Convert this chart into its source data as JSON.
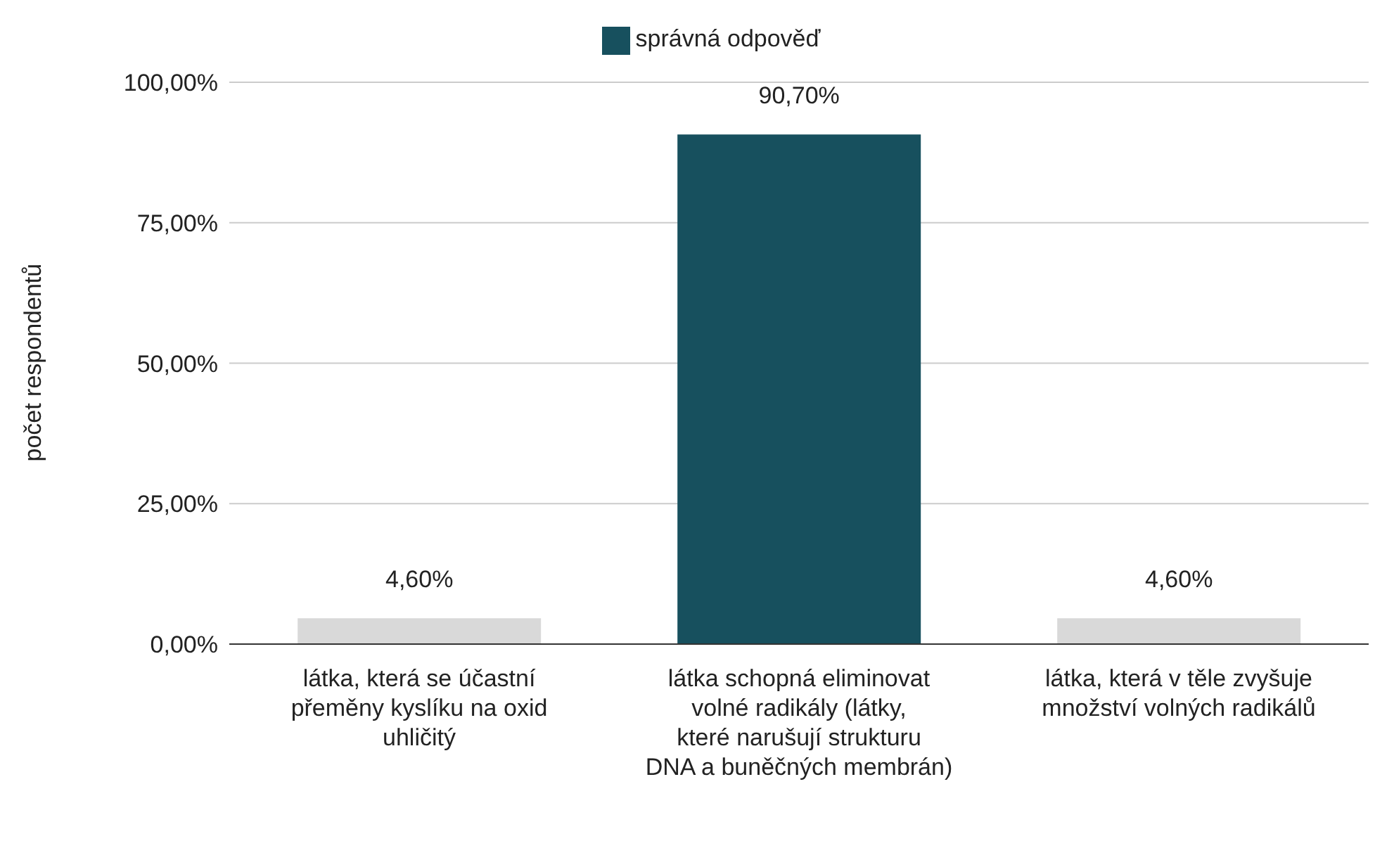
{
  "chart_data": {
    "type": "bar",
    "stacked": true,
    "ylabel": "počet respondentů",
    "categories": [
      "látka, která se účastní přeměny kyslíku na oxid uhličitý",
      "látka schopná eliminovat volné radikály (látky, které narušují strukturu DNA a buněčných membrán)",
      "látka, která v těle zvyšuje množství volných radikálů"
    ],
    "series": [
      {
        "name": "správná odpověď",
        "color": "#17505e",
        "values": [
          null,
          90.7,
          null
        ],
        "value_labels": [
          null,
          "90,70%",
          null
        ]
      },
      {
        "color": "#d9d9d9",
        "values": [
          4.6,
          null,
          4.6
        ],
        "value_labels": [
          "4,60%",
          null,
          "4,60%"
        ]
      }
    ],
    "ylim": [
      0,
      100
    ],
    "yticks": [
      {
        "value": 0,
        "label": "0,00%"
      },
      {
        "value": 25,
        "label": "25,00%"
      },
      {
        "value": 50,
        "label": "50,00%"
      },
      {
        "value": 75,
        "label": "75,00%"
      },
      {
        "value": 100,
        "label": "100,00%"
      }
    ],
    "grid": "y",
    "legend": "top"
  }
}
